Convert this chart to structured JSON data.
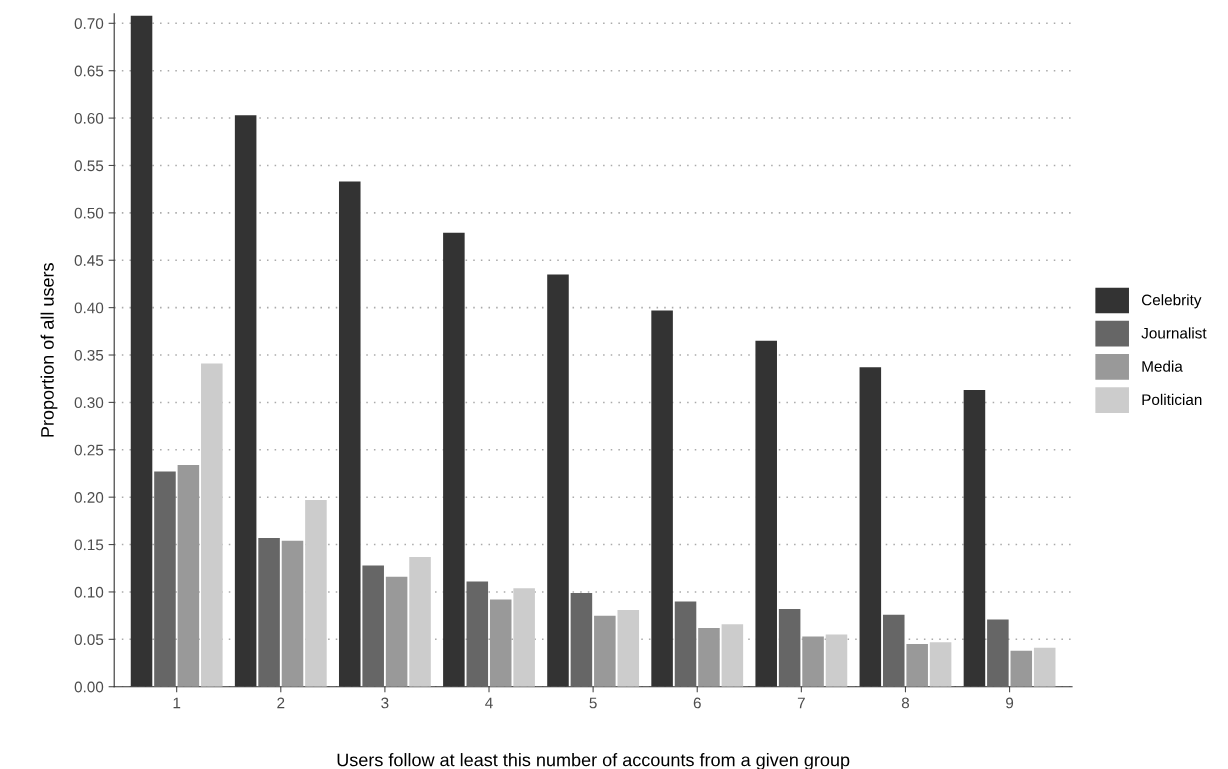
{
  "chart_data": {
    "type": "bar",
    "xlabel": "Users follow at least this number of accounts from a given group",
    "ylabel": "Proportion of all users",
    "categories": [
      "1",
      "2",
      "3",
      "4",
      "5",
      "6",
      "7",
      "8",
      "9"
    ],
    "series": [
      {
        "name": "Celebrity",
        "color": "#333333",
        "values": [
          0.708,
          0.603,
          0.533,
          0.479,
          0.435,
          0.397,
          0.365,
          0.337,
          0.313
        ]
      },
      {
        "name": "Journalist",
        "color": "#666666",
        "values": [
          0.227,
          0.157,
          0.128,
          0.111,
          0.099,
          0.09,
          0.082,
          0.076,
          0.071
        ]
      },
      {
        "name": "Media",
        "color": "#999999",
        "values": [
          0.234,
          0.154,
          0.116,
          0.092,
          0.075,
          0.062,
          0.053,
          0.045,
          0.038
        ]
      },
      {
        "name": "Politician",
        "color": "#cccccc",
        "values": [
          0.341,
          0.197,
          0.137,
          0.104,
          0.081,
          0.066,
          0.055,
          0.047,
          0.041
        ]
      }
    ],
    "ylim": [
      0,
      0.71
    ],
    "yticks": [
      {
        "value": 0,
        "label": "0.00"
      },
      {
        "value": 0.05,
        "label": "0.05"
      },
      {
        "value": 0.1,
        "label": "0.10"
      },
      {
        "value": 0.15,
        "label": "0.15"
      },
      {
        "value": 0.2,
        "label": "0.20"
      },
      {
        "value": 0.25,
        "label": "0.25"
      },
      {
        "value": 0.3,
        "label": "0.30"
      },
      {
        "value": 0.35,
        "label": "0.35"
      },
      {
        "value": 0.4,
        "label": "0.40"
      },
      {
        "value": 0.45,
        "label": "0.45"
      },
      {
        "value": 0.5,
        "label": "0.50"
      },
      {
        "value": 0.55,
        "label": "0.55"
      },
      {
        "value": 0.6,
        "label": "0.60"
      },
      {
        "value": 0.65,
        "label": "0.65"
      },
      {
        "value": 0.7,
        "label": "0.70"
      }
    ],
    "grid": "y",
    "legend": "right"
  }
}
